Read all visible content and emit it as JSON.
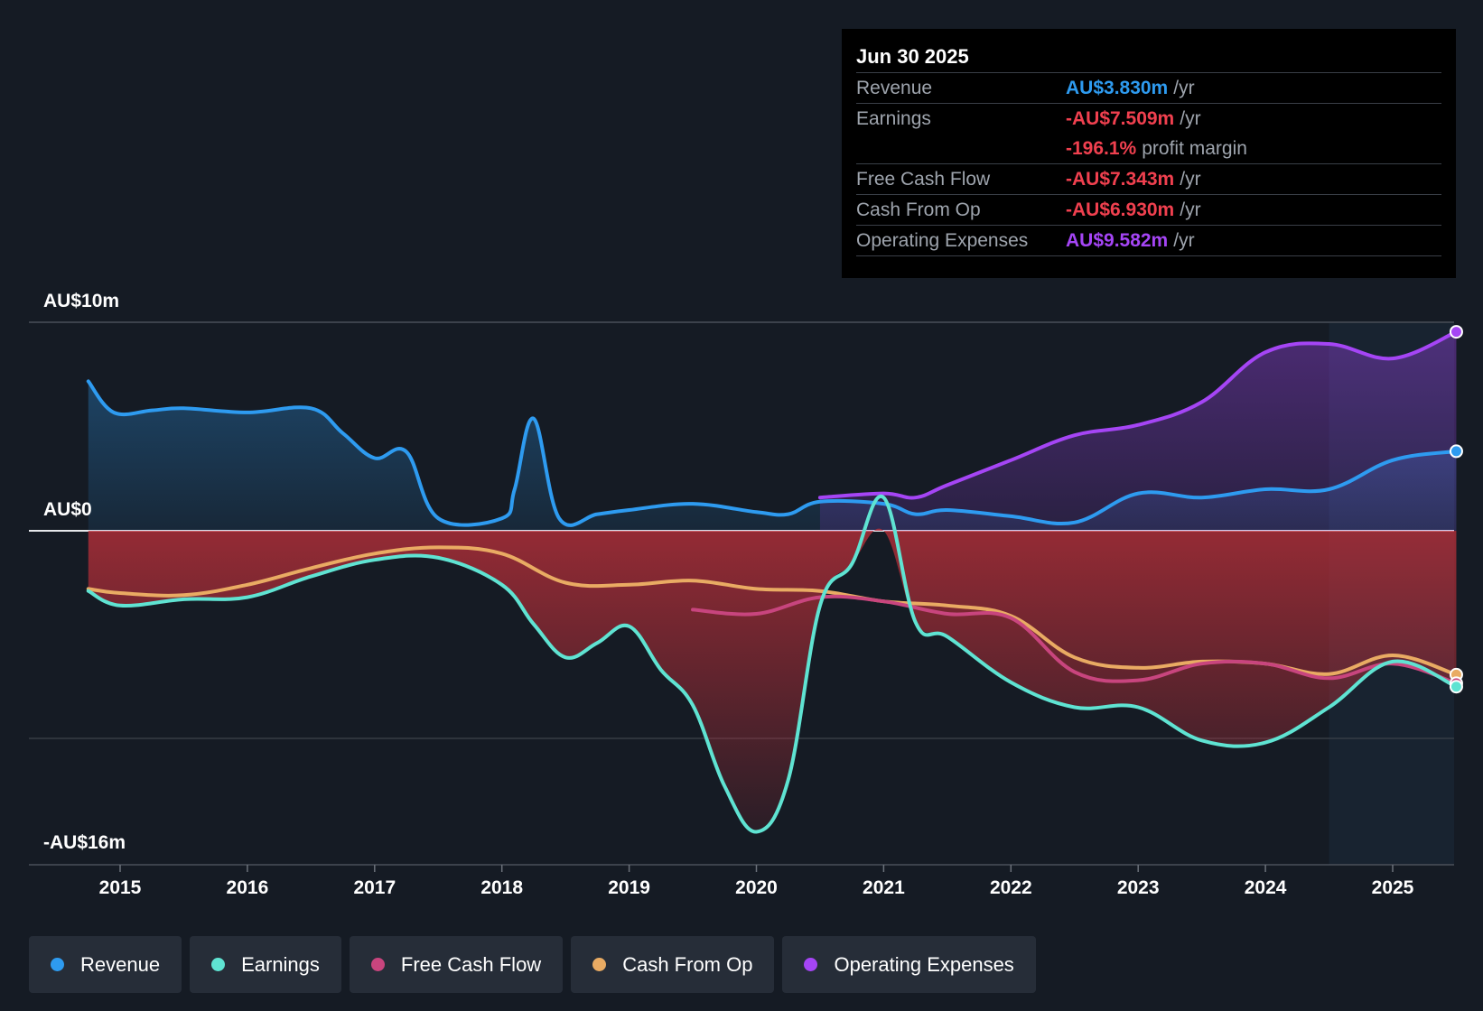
{
  "tooltip": {
    "date": "Jun 30 2025",
    "rows": [
      {
        "label": "Revenue",
        "value": "AU$3.830m",
        "unit": "/yr",
        "color": "#2e9bf0"
      },
      {
        "label": "Earnings",
        "value": "-AU$7.509m",
        "unit": "/yr",
        "color": "#f0404f"
      },
      {
        "label": "",
        "value": "-196.1%",
        "unit": "profit margin",
        "color": "#f0404f"
      },
      {
        "label": "Free Cash Flow",
        "value": "-AU$7.343m",
        "unit": "/yr",
        "color": "#f0404f"
      },
      {
        "label": "Cash From Op",
        "value": "-AU$6.930m",
        "unit": "/yr",
        "color": "#f0404f"
      },
      {
        "label": "Operating Expenses",
        "value": "AU$9.582m",
        "unit": "/yr",
        "color": "#a545f5"
      }
    ]
  },
  "legend": [
    {
      "label": "Revenue",
      "color": "#2e9bf0"
    },
    {
      "label": "Earnings",
      "color": "#5fe3d2"
    },
    {
      "label": "Free Cash Flow",
      "color": "#c8457e"
    },
    {
      "label": "Cash From Op",
      "color": "#e9ab63"
    },
    {
      "label": "Operating Expenses",
      "color": "#a545f5"
    }
  ],
  "chart_data": {
    "type": "area",
    "y_tick_labels": [
      "AU$10m",
      "AU$0",
      "-AU$16m"
    ],
    "ylim": [
      -16,
      10
    ],
    "xlim": [
      2014.5,
      2025.5
    ],
    "x_tick_labels": [
      "2015",
      "2016",
      "2017",
      "2018",
      "2019",
      "2020",
      "2021",
      "2022",
      "2023",
      "2024",
      "2025"
    ],
    "x_ticks": [
      2015,
      2016,
      2017,
      2018,
      2019,
      2020,
      2021,
      2022,
      2023,
      2024,
      2025
    ],
    "forecast_start": 2024.5,
    "grid": "horizontal",
    "series": [
      {
        "name": "Revenue",
        "color": "#2e9bf0",
        "area": true,
        "data": [
          [
            2014.75,
            7.2
          ],
          [
            2014.95,
            5.7
          ],
          [
            2015.25,
            5.8
          ],
          [
            2015.5,
            5.9
          ],
          [
            2016.0,
            5.7
          ],
          [
            2016.5,
            5.9
          ],
          [
            2016.75,
            4.7
          ],
          [
            2017.0,
            3.5
          ],
          [
            2017.25,
            3.8
          ],
          [
            2017.5,
            0.6
          ],
          [
            2018.0,
            0.6
          ],
          [
            2018.1,
            2.0
          ],
          [
            2018.25,
            5.4
          ],
          [
            2018.45,
            0.6
          ],
          [
            2018.75,
            0.8
          ],
          [
            2019.0,
            1.0
          ],
          [
            2019.5,
            1.3
          ],
          [
            2020.0,
            0.9
          ],
          [
            2020.25,
            0.8
          ],
          [
            2020.5,
            1.4
          ],
          [
            2021.0,
            1.3
          ],
          [
            2021.25,
            0.8
          ],
          [
            2021.5,
            1.0
          ],
          [
            2022.0,
            0.7
          ],
          [
            2022.5,
            0.4
          ],
          [
            2023.0,
            1.8
          ],
          [
            2023.5,
            1.6
          ],
          [
            2024.0,
            2.0
          ],
          [
            2024.5,
            2.0
          ],
          [
            2025.0,
            3.4
          ],
          [
            2025.5,
            3.83
          ]
        ]
      },
      {
        "name": "Operating Expenses",
        "color": "#a545f5",
        "area": true,
        "data": [
          [
            2020.5,
            1.6
          ],
          [
            2021.0,
            1.8
          ],
          [
            2021.25,
            1.6
          ],
          [
            2021.5,
            2.2
          ],
          [
            2022.0,
            3.4
          ],
          [
            2022.5,
            4.6
          ],
          [
            2023.0,
            5.1
          ],
          [
            2023.5,
            6.2
          ],
          [
            2024.0,
            8.6
          ],
          [
            2024.5,
            9.0
          ],
          [
            2025.0,
            8.3
          ],
          [
            2025.5,
            9.582
          ]
        ]
      },
      {
        "name": "Earnings",
        "color": "#5fe3d2",
        "area": true,
        "data": [
          [
            2014.75,
            -2.9
          ],
          [
            2015.0,
            -3.6
          ],
          [
            2015.5,
            -3.3
          ],
          [
            2016.0,
            -3.2
          ],
          [
            2016.5,
            -2.2
          ],
          [
            2017.0,
            -1.4
          ],
          [
            2017.5,
            -1.3
          ],
          [
            2018.0,
            -2.6
          ],
          [
            2018.25,
            -4.5
          ],
          [
            2018.5,
            -6.1
          ],
          [
            2018.75,
            -5.4
          ],
          [
            2019.0,
            -4.6
          ],
          [
            2019.25,
            -6.7
          ],
          [
            2019.5,
            -8.4
          ],
          [
            2019.75,
            -12.3
          ],
          [
            2020.0,
            -14.5
          ],
          [
            2020.25,
            -12.0
          ],
          [
            2020.5,
            -3.6
          ],
          [
            2020.75,
            -1.6
          ],
          [
            2021.0,
            1.6
          ],
          [
            2021.25,
            -4.4
          ],
          [
            2021.5,
            -5.1
          ],
          [
            2022.0,
            -7.3
          ],
          [
            2022.5,
            -8.5
          ],
          [
            2023.0,
            -8.5
          ],
          [
            2023.5,
            -10.1
          ],
          [
            2024.0,
            -10.2
          ],
          [
            2024.5,
            -8.5
          ],
          [
            2025.0,
            -6.3
          ],
          [
            2025.5,
            -7.509
          ]
        ]
      },
      {
        "name": "Free Cash Flow",
        "color": "#c8457e",
        "area": false,
        "data": [
          [
            2019.5,
            -3.8
          ],
          [
            2020.0,
            -4.0
          ],
          [
            2020.5,
            -3.2
          ],
          [
            2021.0,
            -3.4
          ],
          [
            2021.5,
            -4.0
          ],
          [
            2022.0,
            -4.2
          ],
          [
            2022.5,
            -6.8
          ],
          [
            2023.0,
            -7.2
          ],
          [
            2023.5,
            -6.4
          ],
          [
            2024.0,
            -6.4
          ],
          [
            2024.5,
            -7.1
          ],
          [
            2025.0,
            -6.4
          ],
          [
            2025.5,
            -7.343
          ]
        ]
      },
      {
        "name": "Cash From Op",
        "color": "#e9ab63",
        "area": false,
        "data": [
          [
            2014.75,
            -2.8
          ],
          [
            2015.0,
            -3.0
          ],
          [
            2015.5,
            -3.1
          ],
          [
            2016.0,
            -2.6
          ],
          [
            2016.5,
            -1.8
          ],
          [
            2017.0,
            -1.1
          ],
          [
            2017.5,
            -0.8
          ],
          [
            2018.0,
            -1.1
          ],
          [
            2018.5,
            -2.5
          ],
          [
            2019.0,
            -2.6
          ],
          [
            2019.5,
            -2.4
          ],
          [
            2020.0,
            -2.8
          ],
          [
            2020.5,
            -2.9
          ],
          [
            2021.0,
            -3.4
          ],
          [
            2021.5,
            -3.6
          ],
          [
            2022.0,
            -4.1
          ],
          [
            2022.5,
            -6.1
          ],
          [
            2023.0,
            -6.6
          ],
          [
            2023.5,
            -6.3
          ],
          [
            2024.0,
            -6.4
          ],
          [
            2024.5,
            -6.9
          ],
          [
            2025.0,
            -6.0
          ],
          [
            2025.5,
            -6.93
          ]
        ]
      }
    ]
  }
}
